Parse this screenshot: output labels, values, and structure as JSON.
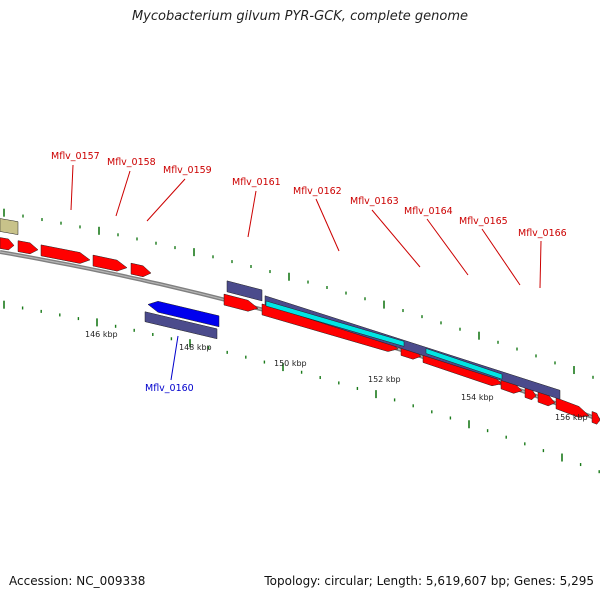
{
  "title": "Mycobacterium gilvum PYR-GCK, complete genome",
  "accession": "Accession: NC_009338",
  "topology": "Topology: circular; Length: 5,619,607 bp; Genes: 5,295",
  "colors": {
    "forward_cds": "#ff0000",
    "reverse_cds": "#0000ee",
    "gene": "#4b4b8c",
    "rna": "#00e5e5",
    "other": "#c8c28a",
    "backbone": "#808080",
    "tick": "#1a7a1a",
    "label_forward": "#cc0000",
    "label_reverse": "#0000cc"
  },
  "scale_labels": [
    "146 kbp",
    "148 kbp",
    "150 kbp",
    "152 kbp",
    "154 kbp",
    "156 kbp"
  ],
  "gene_labels": [
    {
      "text": "Mflv_0157",
      "strand": "forward"
    },
    {
      "text": "Mflv_0158",
      "strand": "forward"
    },
    {
      "text": "Mflv_0159",
      "strand": "forward"
    },
    {
      "text": "Mflv_0161",
      "strand": "forward"
    },
    {
      "text": "Mflv_0162",
      "strand": "forward"
    },
    {
      "text": "Mflv_0163",
      "strand": "forward"
    },
    {
      "text": "Mflv_0164",
      "strand": "forward"
    },
    {
      "text": "Mflv_0165",
      "strand": "forward"
    },
    {
      "text": "Mflv_0166",
      "strand": "forward"
    },
    {
      "text": "Mflv_0160",
      "strand": "reverse"
    }
  ]
}
